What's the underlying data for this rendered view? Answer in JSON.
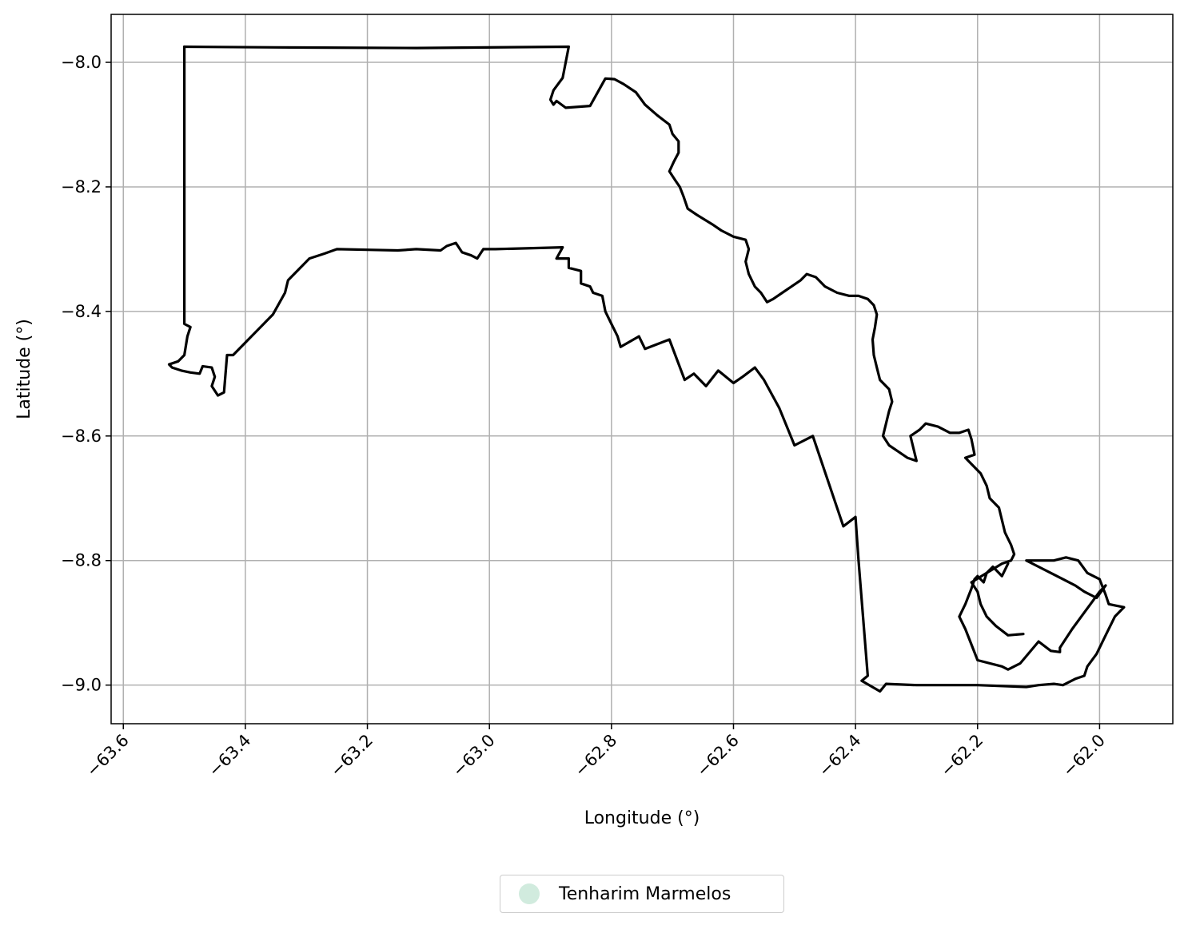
{
  "chart_data": {
    "type": "line",
    "xlabel": "Longitude (°)",
    "ylabel": "Latitude (°)",
    "xlim": [
      -63.62,
      -61.88
    ],
    "ylim": [
      -9.062,
      -7.923
    ],
    "x_ticks": [
      -63.6,
      -63.4,
      -63.2,
      -63.0,
      -62.8,
      -62.6,
      -62.4,
      -62.2,
      -62.0
    ],
    "x_tick_labels": [
      "−63.6",
      "−63.4",
      "−63.2",
      "−63.0",
      "−62.8",
      "−62.6",
      "−62.4",
      "−62.2",
      "−62.0"
    ],
    "y_ticks": [
      -8.0,
      -8.2,
      -8.4,
      -8.6,
      -8.8,
      -9.0
    ],
    "y_tick_labels": [
      "−8.0",
      "−8.2",
      "−8.4",
      "−8.6",
      "−8.8",
      "−9.0"
    ],
    "grid": true,
    "legend_position": "bottom-center",
    "series": [
      {
        "name": "Tenharim Marmelos",
        "marker_color": "#d1ebde",
        "line_color": "#000000",
        "boundary": [
          [
            -63.5,
            -7.975
          ],
          [
            -63.35,
            -7.976
          ],
          [
            -63.12,
            -7.977
          ],
          [
            -62.87,
            -7.975
          ],
          [
            -62.875,
            -8.0
          ],
          [
            -62.88,
            -8.025
          ],
          [
            -62.895,
            -8.045
          ],
          [
            -62.9,
            -8.06
          ],
          [
            -62.895,
            -8.068
          ],
          [
            -62.89,
            -8.062
          ],
          [
            -62.875,
            -8.073
          ],
          [
            -62.835,
            -8.07
          ],
          [
            -62.81,
            -8.026
          ],
          [
            -62.795,
            -8.027
          ],
          [
            -62.78,
            -8.035
          ],
          [
            -62.76,
            -8.048
          ],
          [
            -62.745,
            -8.068
          ],
          [
            -62.725,
            -8.085
          ],
          [
            -62.705,
            -8.1
          ],
          [
            -62.7,
            -8.115
          ],
          [
            -62.69,
            -8.127
          ],
          [
            -62.69,
            -8.145
          ],
          [
            -62.698,
            -8.16
          ],
          [
            -62.705,
            -8.175
          ],
          [
            -62.695,
            -8.19
          ],
          [
            -62.688,
            -8.2
          ],
          [
            -62.682,
            -8.215
          ],
          [
            -62.675,
            -8.235
          ],
          [
            -62.66,
            -8.245
          ],
          [
            -62.635,
            -8.26
          ],
          [
            -62.62,
            -8.27
          ],
          [
            -62.6,
            -8.28
          ],
          [
            -62.58,
            -8.285
          ],
          [
            -62.575,
            -8.3
          ],
          [
            -62.58,
            -8.32
          ],
          [
            -62.575,
            -8.34
          ],
          [
            -62.565,
            -8.36
          ],
          [
            -62.555,
            -8.37
          ],
          [
            -62.545,
            -8.385
          ],
          [
            -62.535,
            -8.38
          ],
          [
            -62.52,
            -8.37
          ],
          [
            -62.505,
            -8.36
          ],
          [
            -62.49,
            -8.35
          ],
          [
            -62.48,
            -8.34
          ],
          [
            -62.465,
            -8.345
          ],
          [
            -62.45,
            -8.36
          ],
          [
            -62.43,
            -8.37
          ],
          [
            -62.41,
            -8.375
          ],
          [
            -62.395,
            -8.375
          ],
          [
            -62.38,
            -8.38
          ],
          [
            -62.37,
            -8.39
          ],
          [
            -62.365,
            -8.405
          ],
          [
            -62.368,
            -8.425
          ],
          [
            -62.372,
            -8.445
          ],
          [
            -62.37,
            -8.47
          ],
          [
            -62.365,
            -8.49
          ],
          [
            -62.36,
            -8.51
          ],
          [
            -62.345,
            -8.525
          ],
          [
            -62.34,
            -8.545
          ],
          [
            -62.345,
            -8.56
          ],
          [
            -62.35,
            -8.58
          ],
          [
            -62.355,
            -8.6
          ],
          [
            -62.345,
            -8.615
          ],
          [
            -62.33,
            -8.625
          ],
          [
            -62.315,
            -8.635
          ],
          [
            -62.3,
            -8.64
          ],
          [
            -62.305,
            -8.62
          ],
          [
            -62.31,
            -8.6
          ],
          [
            -62.295,
            -8.59
          ],
          [
            -62.285,
            -8.58
          ],
          [
            -62.265,
            -8.585
          ],
          [
            -62.245,
            -8.595
          ],
          [
            -62.23,
            -8.595
          ],
          [
            -62.215,
            -8.59
          ],
          [
            -62.21,
            -8.605
          ],
          [
            -62.205,
            -8.63
          ],
          [
            -62.22,
            -8.635
          ],
          [
            -62.21,
            -8.645
          ],
          [
            -62.195,
            -8.66
          ],
          [
            -62.185,
            -8.68
          ],
          [
            -62.18,
            -8.7
          ],
          [
            -62.165,
            -8.715
          ],
          [
            -62.16,
            -8.735
          ],
          [
            -62.155,
            -8.755
          ],
          [
            -62.145,
            -8.775
          ],
          [
            -62.14,
            -8.79
          ],
          [
            -62.145,
            -8.8
          ],
          [
            -62.16,
            -8.805
          ],
          [
            -62.185,
            -8.82
          ],
          [
            -62.21,
            -8.835
          ],
          [
            -62.2,
            -8.85
          ],
          [
            -62.195,
            -8.87
          ],
          [
            -62.185,
            -8.89
          ],
          [
            -62.17,
            -8.905
          ],
          [
            -62.15,
            -8.92
          ],
          [
            -62.125,
            -8.918
          ]
        ],
        "boundary_2": [
          [
            -63.5,
            -7.975
          ],
          [
            -63.5,
            -8.065
          ],
          [
            -63.5,
            -8.42
          ],
          [
            -63.49,
            -8.425
          ],
          [
            -63.495,
            -8.44
          ],
          [
            -63.5,
            -8.47
          ],
          [
            -63.51,
            -8.48
          ],
          [
            -63.525,
            -8.485
          ],
          [
            -63.52,
            -8.49
          ],
          [
            -63.505,
            -8.495
          ],
          [
            -63.49,
            -8.498
          ],
          [
            -63.475,
            -8.5
          ],
          [
            -63.47,
            -8.488
          ],
          [
            -63.455,
            -8.49
          ],
          [
            -63.45,
            -8.505
          ],
          [
            -63.455,
            -8.52
          ],
          [
            -63.445,
            -8.535
          ],
          [
            -63.435,
            -8.53
          ],
          [
            -63.43,
            -8.47
          ],
          [
            -63.42,
            -8.47
          ],
          [
            -63.4,
            -8.45
          ],
          [
            -63.38,
            -8.43
          ],
          [
            -63.355,
            -8.405
          ],
          [
            -63.335,
            -8.37
          ],
          [
            -63.33,
            -8.35
          ],
          [
            -63.31,
            -8.33
          ],
          [
            -63.295,
            -8.315
          ],
          [
            -63.27,
            -8.307
          ],
          [
            -63.25,
            -8.3
          ],
          [
            -63.2,
            -8.301
          ],
          [
            -63.15,
            -8.302
          ],
          [
            -63.12,
            -8.3
          ],
          [
            -63.08,
            -8.302
          ],
          [
            -63.07,
            -8.295
          ],
          [
            -63.055,
            -8.29
          ],
          [
            -63.045,
            -8.305
          ],
          [
            -63.03,
            -8.31
          ],
          [
            -63.02,
            -8.315
          ],
          [
            -63.01,
            -8.3
          ],
          [
            -63.0,
            -8.3
          ],
          [
            -62.99,
            -8.3
          ],
          [
            -62.88,
            -8.297
          ],
          [
            -62.89,
            -8.315
          ],
          [
            -62.87,
            -8.315
          ],
          [
            -62.87,
            -8.33
          ],
          [
            -62.85,
            -8.335
          ],
          [
            -62.85,
            -8.355
          ],
          [
            -62.835,
            -8.36
          ],
          [
            -62.83,
            -8.37
          ],
          [
            -62.815,
            -8.375
          ],
          [
            -62.81,
            -8.4
          ],
          [
            -62.8,
            -8.42
          ],
          [
            -62.79,
            -8.44
          ],
          [
            -62.785,
            -8.457
          ],
          [
            -62.755,
            -8.44
          ],
          [
            -62.745,
            -8.46
          ],
          [
            -62.705,
            -8.445
          ],
          [
            -62.68,
            -8.51
          ],
          [
            -62.665,
            -8.5
          ],
          [
            -62.645,
            -8.52
          ],
          [
            -62.625,
            -8.495
          ],
          [
            -62.6,
            -8.515
          ],
          [
            -62.585,
            -8.505
          ],
          [
            -62.565,
            -8.49
          ],
          [
            -62.55,
            -8.51
          ],
          [
            -62.525,
            -8.555
          ],
          [
            -62.5,
            -8.615
          ],
          [
            -62.47,
            -8.6
          ],
          [
            -62.42,
            -8.745
          ],
          [
            -62.4,
            -8.73
          ],
          [
            -62.395,
            -8.8
          ],
          [
            -62.38,
            -8.985
          ],
          [
            -62.39,
            -8.993
          ],
          [
            -62.36,
            -9.01
          ],
          [
            -62.35,
            -8.998
          ],
          [
            -62.3,
            -9.0
          ],
          [
            -62.2,
            -9.0
          ],
          [
            -62.12,
            -9.003
          ],
          [
            -62.1,
            -9.0
          ],
          [
            -62.075,
            -8.998
          ],
          [
            -62.06,
            -9.0
          ],
          [
            -62.04,
            -8.99
          ],
          [
            -62.025,
            -8.985
          ],
          [
            -62.02,
            -8.97
          ],
          [
            -62.005,
            -8.95
          ],
          [
            -61.99,
            -8.92
          ],
          [
            -61.975,
            -8.89
          ],
          [
            -61.96,
            -8.875
          ],
          [
            -61.985,
            -8.87
          ],
          [
            -61.99,
            -8.855
          ],
          [
            -62.0,
            -8.83
          ],
          [
            -62.02,
            -8.82
          ],
          [
            -62.035,
            -8.8
          ],
          [
            -62.055,
            -8.795
          ],
          [
            -62.075,
            -8.8
          ],
          [
            -62.1,
            -8.8
          ],
          [
            -62.12,
            -8.8
          ],
          [
            -62.1,
            -8.81
          ],
          [
            -62.08,
            -8.82
          ],
          [
            -62.06,
            -8.83
          ],
          [
            -62.04,
            -8.84
          ],
          [
            -62.025,
            -8.85
          ],
          [
            -62.005,
            -8.86
          ],
          [
            -61.99,
            -8.84
          ],
          [
            -62.0,
            -8.85
          ],
          [
            -62.015,
            -8.87
          ],
          [
            -62.03,
            -8.89
          ],
          [
            -62.045,
            -8.91
          ],
          [
            -62.065,
            -8.94
          ],
          [
            -62.065,
            -8.947
          ],
          [
            -62.08,
            -8.945
          ],
          [
            -62.1,
            -8.93
          ],
          [
            -62.13,
            -8.965
          ],
          [
            -62.15,
            -8.975
          ],
          [
            -62.16,
            -8.97
          ],
          [
            -62.2,
            -8.96
          ],
          [
            -62.22,
            -8.91
          ],
          [
            -62.23,
            -8.89
          ],
          [
            -62.22,
            -8.87
          ],
          [
            -62.21,
            -8.845
          ],
          [
            -62.205,
            -8.83
          ],
          [
            -62.2,
            -8.825
          ],
          [
            -62.19,
            -8.835
          ],
          [
            -62.185,
            -8.82
          ],
          [
            -62.175,
            -8.81
          ],
          [
            -62.17,
            -8.815
          ],
          [
            -62.16,
            -8.825
          ],
          [
            -62.15,
            -8.805
          ]
        ]
      }
    ]
  }
}
